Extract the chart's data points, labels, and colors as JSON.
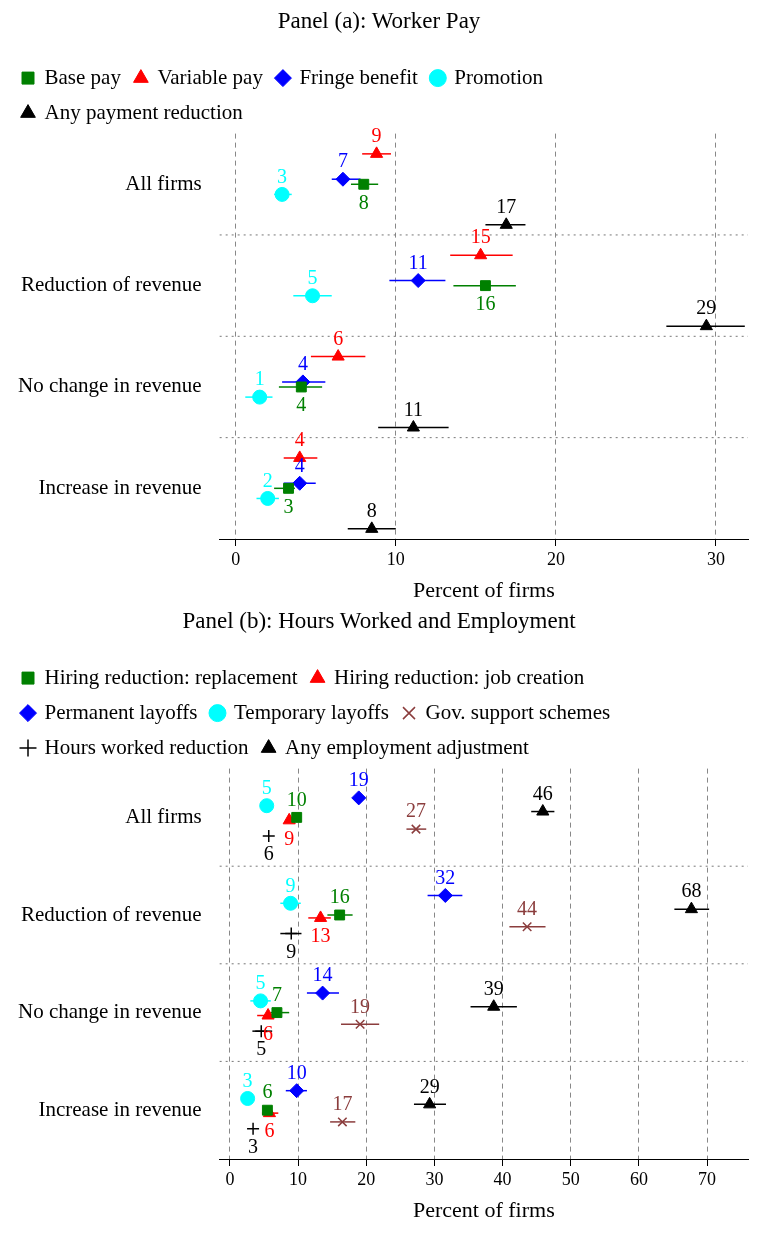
{
  "chart_data": [
    {
      "type": "scatter",
      "title": "Panel (a): Worker Pay",
      "xlabel": "Percent of firms",
      "orientation": "horizontal",
      "categories": [
        "All firms",
        "Reduction of revenue",
        "No change in revenue",
        "Increase in revenue"
      ],
      "xlim": [
        -1,
        32
      ],
      "xticks": [
        0,
        10,
        20,
        30
      ],
      "grid": true,
      "legend": "top",
      "series": [
        {
          "name": "Base pay",
          "color": "#008000",
          "marker": "square",
          "values": [
            8.0,
            15.6,
            4.1,
            3.3
          ],
          "errors": [
            [
              7.2,
              8.9
            ],
            [
              13.6,
              17.5
            ],
            [
              2.7,
              5.4
            ],
            [
              2.4,
              3.7
            ]
          ],
          "value_labels": [
            "8",
            "16",
            "4",
            "3"
          ]
        },
        {
          "name": "Variable pay",
          "color": "#ff0000",
          "marker": "triangle",
          "values": [
            8.8,
            15.3,
            6.4,
            4.0
          ],
          "errors": [
            [
              7.9,
              9.7
            ],
            [
              13.4,
              17.3
            ],
            [
              4.7,
              8.1
            ],
            [
              3.0,
              5.1
            ]
          ],
          "value_labels": [
            "9",
            "15",
            "6",
            "4"
          ]
        },
        {
          "name": "Fringe benefit",
          "color": "#0000ff",
          "marker": "diamond",
          "values": [
            6.7,
            11.4,
            4.2,
            4.0
          ],
          "errors": [
            [
              6.0,
              7.8
            ],
            [
              9.6,
              13.1
            ],
            [
              2.9,
              5.6
            ],
            [
              3.0,
              5.0
            ]
          ],
          "value_labels": [
            "7",
            "11",
            "4",
            "4"
          ]
        },
        {
          "name": "Promotion",
          "color": "#00ffff",
          "marker": "circle",
          "values": [
            2.9,
            4.8,
            1.5,
            2.0
          ],
          "errors": [
            [
              2.4,
              3.5
            ],
            [
              3.6,
              6.0
            ],
            [
              0.6,
              2.3
            ],
            [
              1.3,
              2.7
            ]
          ],
          "value_labels": [
            "3",
            "5",
            "1",
            "2"
          ]
        },
        {
          "name": "Any payment reduction",
          "color": "#000000",
          "marker": "triangle",
          "values": [
            16.9,
            29.4,
            11.1,
            8.5
          ],
          "errors": [
            [
              15.6,
              18.1
            ],
            [
              26.9,
              31.8
            ],
            [
              8.9,
              13.3
            ],
            [
              7.0,
              10.0
            ]
          ],
          "value_labels": [
            "17",
            "29",
            "11",
            "8"
          ]
        }
      ]
    },
    {
      "type": "scatter",
      "title": "Panel (b): Hours Worked and Employment",
      "xlabel": "Percent of firms",
      "orientation": "horizontal",
      "categories": [
        "All firms",
        "Reduction of revenue",
        "No change in revenue",
        "Increase in revenue"
      ],
      "xlim": [
        -1.5,
        76
      ],
      "xticks": [
        0,
        10,
        20,
        30,
        40,
        50,
        60,
        70
      ],
      "grid": true,
      "legend": "top",
      "series": [
        {
          "name": "Hiring reduction: replacement",
          "color": "#008000",
          "marker": "square",
          "values": [
            9.8,
            16.1,
            6.9,
            5.5
          ],
          "errors": [
            null,
            [
              14.3,
              18.0
            ],
            [
              6.0,
              8.7
            ],
            null
          ],
          "value_labels": [
            "10",
            "16",
            "7",
            "6"
          ]
        },
        {
          "name": "Hiring reduction: job creation",
          "color": "#ff0000",
          "marker": "triangle",
          "values": [
            8.7,
            13.3,
            5.6,
            5.8
          ],
          "errors": [
            null,
            [
              11.5,
              14.8
            ],
            [
              4.0,
              7.3
            ],
            [
              4.7,
              7.1
            ]
          ],
          "value_labels": [
            "9",
            "13",
            "6",
            "6"
          ]
        },
        {
          "name": "Permanent layoffs",
          "color": "#0000ff",
          "marker": "diamond",
          "values": [
            18.9,
            31.6,
            13.6,
            9.8
          ],
          "errors": [
            null,
            [
              29.0,
              34.1
            ],
            [
              11.3,
              16.0
            ],
            [
              8.2,
              11.3
            ]
          ],
          "value_labels": [
            "19",
            "32",
            "14",
            "10"
          ]
        },
        {
          "name": "Temporary layoffs",
          "color": "#00ffff",
          "marker": "circle",
          "values": [
            5.4,
            8.9,
            4.5,
            2.6
          ],
          "errors": [
            null,
            [
              7.4,
              10.4
            ],
            [
              3.0,
              6.0
            ],
            null
          ],
          "value_labels": [
            "5",
            "9",
            "5",
            "3"
          ]
        },
        {
          "name": "Gov. support schemes",
          "color": "#8b3d3d",
          "marker": "x",
          "values": [
            27.3,
            43.6,
            19.1,
            16.5
          ],
          "errors": [
            [
              25.9,
              28.8
            ],
            [
              41.0,
              46.3
            ],
            [
              16.3,
              21.9
            ],
            [
              14.7,
              18.4
            ]
          ],
          "value_labels": [
            "27",
            "44",
            "19",
            "17"
          ]
        },
        {
          "name": "Hours worked reduction",
          "color": "#000000",
          "marker": "cross",
          "values": [
            5.7,
            9.0,
            4.6,
            3.4
          ],
          "errors": [
            null,
            [
              7.4,
              10.5
            ],
            [
              3.3,
              6.2
            ],
            null
          ],
          "value_labels": [
            "6",
            "9",
            "5",
            "3"
          ]
        },
        {
          "name": "Any employment adjustment",
          "color": "#000000",
          "marker": "triangle",
          "values": [
            45.9,
            67.7,
            38.7,
            29.3
          ],
          "errors": [
            [
              44.2,
              47.6
            ],
            [
              65.2,
              70.3
            ],
            [
              35.3,
              42.1
            ],
            [
              27.0,
              31.7
            ]
          ],
          "value_labels": [
            "46",
            "68",
            "39",
            "29"
          ]
        }
      ]
    }
  ]
}
